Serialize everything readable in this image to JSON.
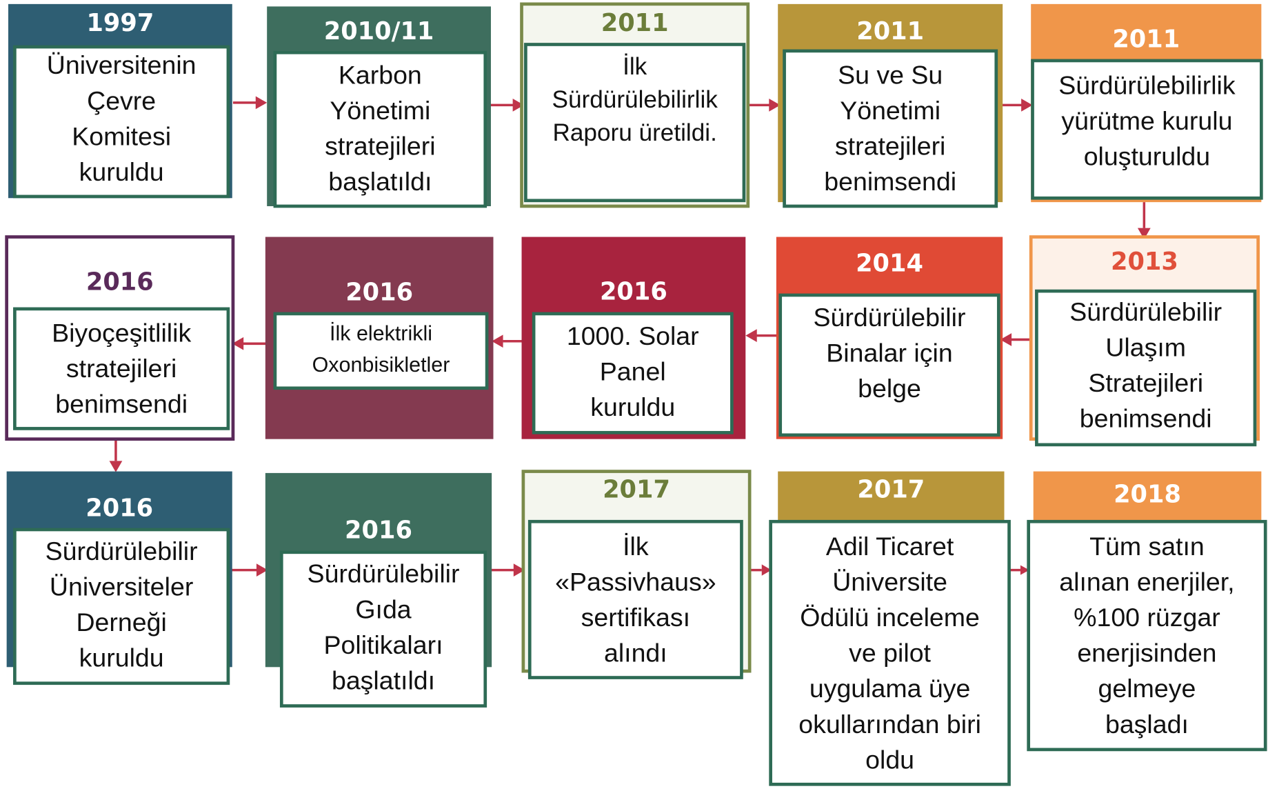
{
  "nodes": [
    {
      "year": "1997",
      "lines": [
        "Üniversitenin",
        "Çevre",
        "Komitesi",
        "kuruldu"
      ]
    },
    {
      "year": "2010/11",
      "lines": [
        "Karbon",
        "Yönetimi",
        "stratejileri",
        "başlatıldı"
      ]
    },
    {
      "year": "2011",
      "lines": [
        "İlk",
        "Sürdürülebilirlik",
        "Raporu üretildi."
      ]
    },
    {
      "year": "2011",
      "lines": [
        "Su ve Su",
        "Yönetimi",
        "stratejileri",
        "benimsendi"
      ]
    },
    {
      "year": "2011",
      "lines": [
        "Sürdürülebilirlik",
        "yürütme kurulu",
        "oluşturuldu"
      ]
    },
    {
      "year": "2013",
      "lines": [
        "Sürdürülebilir",
        "Ulaşım",
        "Stratejileri",
        "benimsendi"
      ]
    },
    {
      "year": "2014",
      "lines": [
        "Sürdürülebilir",
        "Binalar için",
        "belge"
      ]
    },
    {
      "year": "2016",
      "lines": [
        "1000. Solar",
        "Panel",
        "kuruldu"
      ]
    },
    {
      "year": "2016",
      "lines": [
        "İlk elektrikli",
        "Oxonbisikletler"
      ]
    },
    {
      "year": "2016",
      "lines": [
        "Biyoçeşitlilik",
        "stratejileri",
        "benimsendi"
      ]
    },
    {
      "year": "2016",
      "lines": [
        "Sürdürülebilir",
        "Üniversiteler",
        "Derneği",
        "kuruldu"
      ]
    },
    {
      "year": "2016",
      "lines": [
        "Sürdürülebilir",
        "Gıda",
        "Politikaları",
        "başlatıldı"
      ]
    },
    {
      "year": "2017",
      "lines": [
        "İlk",
        "«Passivhaus»",
        "sertifikası",
        "alındı"
      ]
    },
    {
      "year": "2017",
      "lines": [
        "Adil Ticaret",
        "Üniversite",
        "Ödülü inceleme",
        "ve pilot",
        "uygulama üye",
        "okullarından biri",
        "oldu"
      ]
    },
    {
      "year": "2018",
      "lines": [
        "Tüm satın",
        "alınan enerjiler,",
        "%100 rüzgar",
        "enerjisinden",
        "gelmeye",
        "başladı"
      ]
    }
  ]
}
